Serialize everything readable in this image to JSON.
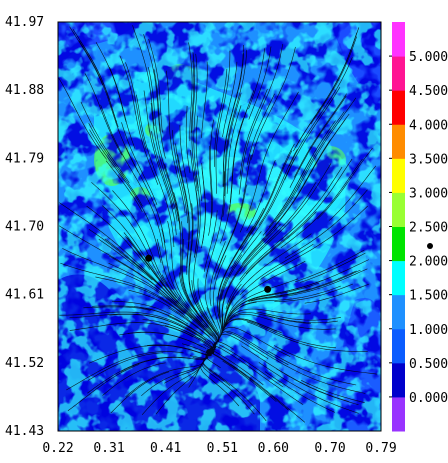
{
  "chart_data": {
    "type": "heatmap",
    "title": "",
    "xlabel": "",
    "ylabel": "",
    "xlim": [
      0.22,
      0.79
    ],
    "ylim": [
      41.43,
      41.97
    ],
    "x_ticks": [
      "0.22",
      "0.31",
      "0.41",
      "0.51",
      "0.60",
      "0.70",
      "0.79"
    ],
    "y_ticks": [
      "41.97",
      "41.88",
      "41.79",
      "41.70",
      "41.61",
      "41.52",
      "41.43"
    ],
    "colorbar": {
      "levels": [
        "0.000",
        "0.500",
        "1.000",
        "1.500",
        "2.000",
        "2.500",
        "3.000",
        "3.500",
        "4.000",
        "4.500",
        "5.000"
      ],
      "colors": [
        "#9933ff",
        "#0000cc",
        "#0a5cff",
        "#1e90ff",
        "#00ffff",
        "#00e400",
        "#99ff33",
        "#ffff00",
        "#ff8c00",
        "#ff0000",
        "#ff1493",
        "#ff33ff"
      ]
    },
    "overlay": "streamlines",
    "markers": [
      {
        "x": 0.38,
        "y": 41.658
      },
      {
        "x": 0.59,
        "y": 41.617
      }
    ],
    "dominant_range": "1.000-1.500"
  }
}
